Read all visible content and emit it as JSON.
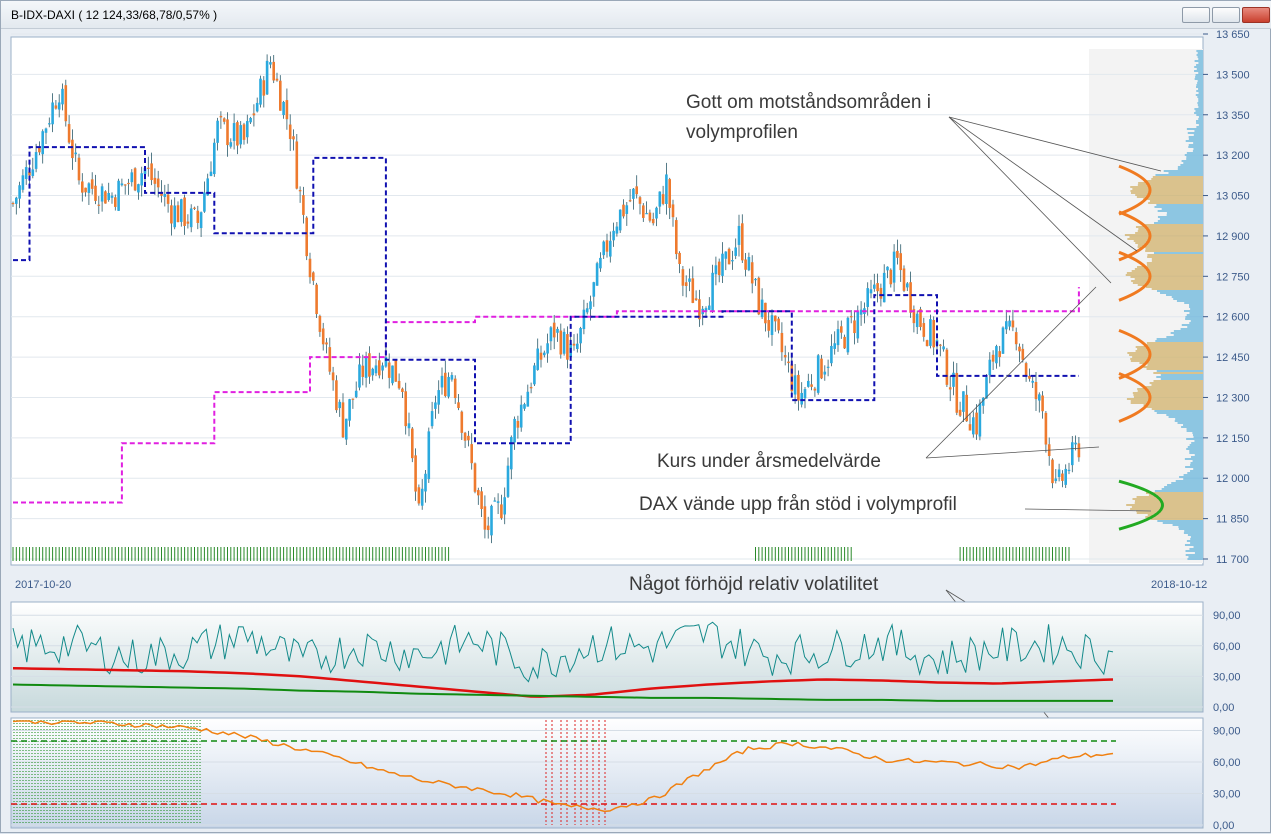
{
  "window": {
    "title": "B-IDX-DAXI ( 12 124,33/68,78/0,57% )"
  },
  "colors": {
    "up": "#2aa9de",
    "down": "#ee7a2e",
    "yearly_avg": "#e020e0",
    "quarter_avg": "#1010b0",
    "volatility": "#138a8a",
    "red_line": "#e01010",
    "green_line": "#108a10",
    "orange_line": "#f08010",
    "annotation_orange": "#f07a20",
    "annotation_green": "#22aa22"
  },
  "annotations": {
    "resistance_line1": "Gott om motståndsområden i",
    "resistance_line2": "volymprofilen",
    "below_avg": "Kurs under årsmedelvärde",
    "support": "DAX vände upp från stöd i volymprofil",
    "volatility": "Något förhöjd relativ volatilitet"
  },
  "chart_data": [
    {
      "type": "candlestick",
      "title": "B-IDX-DAXI ( 12 124,33/68,78/0,57% )",
      "x_start": "2017-10-20",
      "x_end": "2018-10-12",
      "y_ticks": [
        "13 650",
        "13 500",
        "13 350",
        "13 200",
        "13 050",
        "12 900",
        "12 750",
        "12 600",
        "12 450",
        "12 300",
        "12 150",
        "12 000",
        "11 850",
        "11 700"
      ],
      "ylim": [
        11700,
        13650
      ],
      "close_anchors": [
        [
          0,
          13020
        ],
        [
          8,
          13250
        ],
        [
          14,
          13450
        ],
        [
          20,
          13100
        ],
        [
          30,
          13050
        ],
        [
          40,
          13150
        ],
        [
          48,
          13000
        ],
        [
          56,
          12950
        ],
        [
          62,
          13300
        ],
        [
          70,
          13250
        ],
        [
          78,
          13550
        ],
        [
          84,
          13300
        ],
        [
          90,
          12800
        ],
        [
          95,
          12450
        ],
        [
          100,
          12200
        ],
        [
          106,
          12400
        ],
        [
          112,
          12450
        ],
        [
          118,
          12350
        ],
        [
          123,
          11850
        ],
        [
          128,
          12300
        ],
        [
          133,
          12400
        ],
        [
          138,
          12100
        ],
        [
          143,
          11800
        ],
        [
          148,
          11900
        ],
        [
          152,
          12200
        ],
        [
          158,
          12400
        ],
        [
          164,
          12550
        ],
        [
          170,
          12450
        ],
        [
          176,
          12700
        ],
        [
          182,
          12950
        ],
        [
          188,
          13050
        ],
        [
          194,
          12950
        ],
        [
          198,
          13100
        ],
        [
          202,
          12750
        ],
        [
          208,
          12650
        ],
        [
          214,
          12750
        ],
        [
          220,
          12900
        ],
        [
          226,
          12650
        ],
        [
          232,
          12500
        ],
        [
          238,
          12300
        ],
        [
          244,
          12400
        ],
        [
          250,
          12500
        ],
        [
          256,
          12600
        ],
        [
          262,
          12700
        ],
        [
          268,
          12800
        ],
        [
          274,
          12600
        ],
        [
          280,
          12500
        ],
        [
          286,
          12300
        ],
        [
          292,
          12200
        ],
        [
          298,
          12500
        ],
        [
          304,
          12550
        ],
        [
          308,
          12350
        ],
        [
          312,
          12250
        ],
        [
          316,
          11950
        ],
        [
          320,
          12050
        ],
        [
          323,
          12124
        ]
      ],
      "yearly_average": {
        "name": "Årsmedelvärde",
        "steps": [
          [
            0,
            11910
          ],
          [
            33,
            12130
          ],
          [
            61,
            12320
          ],
          [
            90,
            12450
          ],
          [
            113,
            12580
          ],
          [
            140,
            12600
          ],
          [
            183,
            12620
          ],
          [
            323,
            12710
          ]
        ]
      },
      "quarter_average": {
        "steps": [
          [
            0,
            12810
          ],
          [
            5,
            13230
          ],
          [
            40,
            13060
          ],
          [
            61,
            12910
          ],
          [
            91,
            13190
          ],
          [
            113,
            12440
          ],
          [
            140,
            12130
          ],
          [
            169,
            12600
          ],
          [
            215,
            12620
          ],
          [
            236,
            12290
          ],
          [
            261,
            12680
          ],
          [
            280,
            12380
          ],
          [
            323,
            12380
          ]
        ]
      },
      "volume_profile_peaks": [
        13070,
        12900,
        12750,
        12460,
        12300,
        11900
      ],
      "volume_profile_supports": [
        11900
      ]
    },
    {
      "type": "line",
      "title": "",
      "yticks": [
        "90,00",
        "60,00",
        "30,00",
        "0,00"
      ],
      "ylim": [
        0,
        100
      ],
      "series": [
        {
          "values": [
            58,
            62,
            48,
            55,
            70,
            45,
            60,
            52,
            66,
            40,
            62,
            58,
            72,
            50,
            55,
            64,
            46,
            58,
            62,
            50
          ]
        },
        {
          "values": [
            38,
            37,
            36,
            35,
            33,
            30,
            25,
            20,
            15,
            10,
            12,
            18,
            22,
            25,
            27,
            26,
            24,
            23,
            25,
            27
          ]
        },
        {
          "values": [
            22,
            21,
            20,
            19,
            18,
            16,
            15,
            13,
            12,
            11,
            10,
            9,
            9,
            8,
            7,
            7,
            6,
            6,
            6,
            6
          ]
        }
      ]
    },
    {
      "type": "line",
      "title": "",
      "yticks": [
        "90,00",
        "60,00",
        "30,00",
        "0,00"
      ],
      "ylim": [
        0,
        100
      ],
      "reference_lines": [
        80,
        20
      ],
      "series": [
        {
          "values": [
            100,
            98,
            97,
            95,
            92,
            85,
            75,
            65,
            52,
            42,
            35,
            28,
            18,
            15,
            25,
            50,
            72,
            78,
            72,
            62,
            60,
            58,
            55,
            65,
            68
          ]
        }
      ]
    }
  ]
}
